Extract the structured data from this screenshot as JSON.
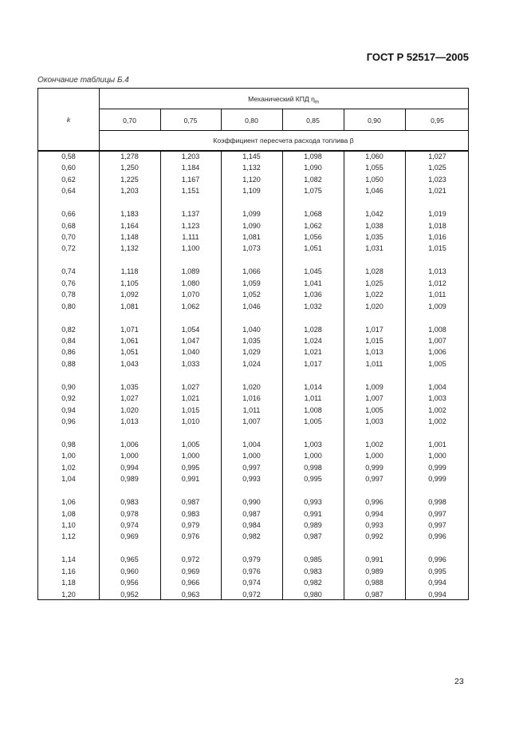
{
  "header": {
    "standard": "ГОСТ Р 52517—2005"
  },
  "caption": "Окончание таблицы Б.4",
  "table": {
    "k_header": "k",
    "group_header": "Механический КПД η",
    "group_header_sub": "m",
    "columns": [
      "0,70",
      "0,75",
      "0,80",
      "0,85",
      "0,90",
      "0,95"
    ],
    "subheader": "Коэффициент пересчета расхода топлива  β",
    "rows": [
      [
        "0,58",
        "1,278",
        "1,203",
        "1,145",
        "1,098",
        "1,060",
        "1,027"
      ],
      [
        "0,60",
        "1,250",
        "1,184",
        "1,132",
        "1,090",
        "1,055",
        "1,025"
      ],
      [
        "0,62",
        "1,225",
        "1,167",
        "1,120",
        "1,082",
        "1,050",
        "1,023"
      ],
      [
        "0,64",
        "1,203",
        "1,151",
        "1,109",
        "1,075",
        "1,046",
        "1,021"
      ],
      [
        "0,66",
        "1,183",
        "1,137",
        "1,099",
        "1,068",
        "1,042",
        "1,019"
      ],
      [
        "0,68",
        "1,164",
        "1,123",
        "1,090",
        "1,062",
        "1,038",
        "1,018"
      ],
      [
        "0,70",
        "1,148",
        "1,111",
        "1,081",
        "1,056",
        "1,035",
        "1,016"
      ],
      [
        "0,72",
        "1,132",
        "1,100",
        "1,073",
        "1,051",
        "1,031",
        "1,015"
      ],
      [
        "0,74",
        "1,118",
        "1,089",
        "1,066",
        "1,045",
        "1,028",
        "1,013"
      ],
      [
        "0,76",
        "1,105",
        "1,080",
        "1,059",
        "1,041",
        "1,025",
        "1,012"
      ],
      [
        "0,78",
        "1,092",
        "1,070",
        "1,052",
        "1,036",
        "1,022",
        "1,011"
      ],
      [
        "0,80",
        "1,081",
        "1,062",
        "1,046",
        "1,032",
        "1,020",
        "1,009"
      ],
      [
        "0,82",
        "1,071",
        "1,054",
        "1,040",
        "1,028",
        "1,017",
        "1,008"
      ],
      [
        "0,84",
        "1,061",
        "1,047",
        "1,035",
        "1,024",
        "1,015",
        "1,007"
      ],
      [
        "0,86",
        "1,051",
        "1,040",
        "1,029",
        "1,021",
        "1,013",
        "1,006"
      ],
      [
        "0,88",
        "1,043",
        "1,033",
        "1,024",
        "1,017",
        "1,011",
        "1,005"
      ],
      [
        "0,90",
        "1,035",
        "1,027",
        "1,020",
        "1,014",
        "1,009",
        "1,004"
      ],
      [
        "0,92",
        "1,027",
        "1,021",
        "1,016",
        "1,011",
        "1,007",
        "1,003"
      ],
      [
        "0,94",
        "1,020",
        "1,015",
        "1,011",
        "1,008",
        "1,005",
        "1,002"
      ],
      [
        "0,96",
        "1,013",
        "1,010",
        "1,007",
        "1,005",
        "1,003",
        "1,002"
      ],
      [
        "0,98",
        "1,006",
        "1,005",
        "1,004",
        "1,003",
        "1,002",
        "1,001"
      ],
      [
        "1,00",
        "1,000",
        "1,000",
        "1,000",
        "1,000",
        "1,000",
        "1,000"
      ],
      [
        "1,02",
        "0,994",
        "0,995",
        "0,997",
        "0,998",
        "0,999",
        "0,999"
      ],
      [
        "1,04",
        "0,989",
        "0,991",
        "0,993",
        "0,995",
        "0,997",
        "0,999"
      ],
      [
        "1,06",
        "0,983",
        "0,987",
        "0,990",
        "0,993",
        "0,996",
        "0,998"
      ],
      [
        "1,08",
        "0,978",
        "0,983",
        "0,987",
        "0,991",
        "0,994",
        "0,997"
      ],
      [
        "1,10",
        "0,974",
        "0,979",
        "0,984",
        "0,989",
        "0,993",
        "0,997"
      ],
      [
        "1,12",
        "0,969",
        "0,976",
        "0,982",
        "0,987",
        "0,992",
        "0,996"
      ],
      [
        "1,14",
        "0,965",
        "0,972",
        "0,979",
        "0,985",
        "0,991",
        "0,996"
      ],
      [
        "1,16",
        "0,960",
        "0,969",
        "0,976",
        "0,983",
        "0,989",
        "0,995"
      ],
      [
        "1,18",
        "0,956",
        "0,966",
        "0,974",
        "0,982",
        "0,988",
        "0,994"
      ],
      [
        "1,20",
        "0,952",
        "0,963",
        "0,972",
        "0,980",
        "0,987",
        "0,994"
      ]
    ]
  },
  "page_number": "23"
}
